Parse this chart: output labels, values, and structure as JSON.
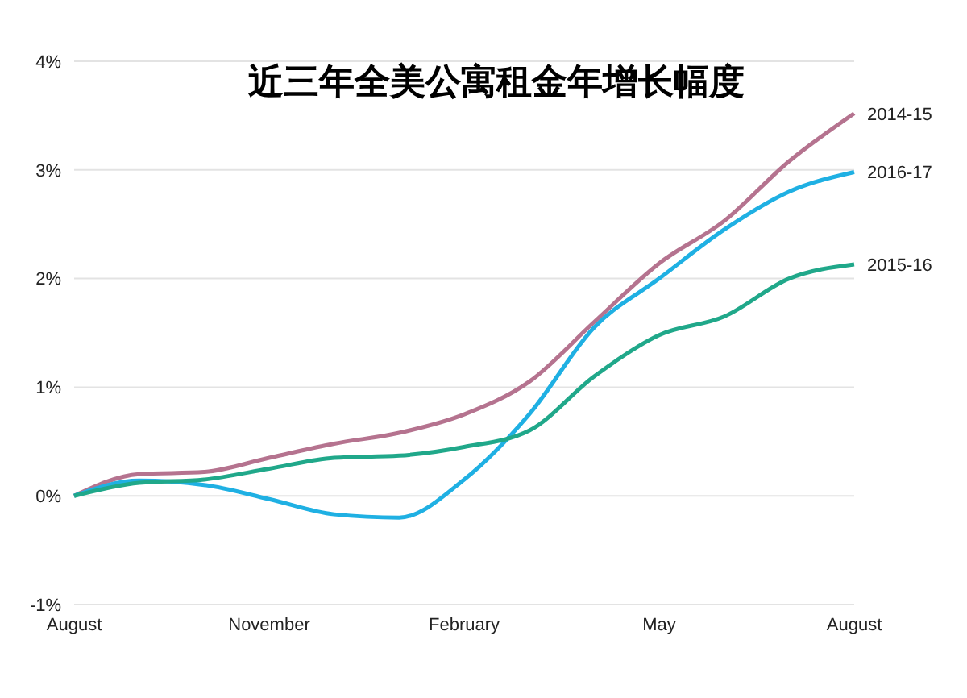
{
  "chart_data": {
    "type": "line",
    "title": "近三年全美公寓租金年增长幅度",
    "categories": [
      "August",
      null,
      null,
      "November",
      null,
      null,
      "February",
      null,
      null,
      "May",
      null,
      null,
      "August"
    ],
    "series": [
      {
        "name": "2014-15",
        "color": "#b5738f",
        "values": [
          0,
          0.2,
          0.22,
          0.35,
          0.48,
          0.58,
          0.75,
          1.05,
          1.6,
          2.14,
          2.53,
          3.08,
          3.52
        ]
      },
      {
        "name": "2016-17",
        "color": "#1fb0e3",
        "values": [
          0,
          0.14,
          0.1,
          -0.03,
          -0.17,
          -0.2,
          0.15,
          0.75,
          1.55,
          2.0,
          2.45,
          2.8,
          2.98
        ]
      },
      {
        "name": "2015-16",
        "color": "#20a88a",
        "values": [
          0,
          0.12,
          0.15,
          0.25,
          0.35,
          0.37,
          0.45,
          0.6,
          1.1,
          1.48,
          1.65,
          2.0,
          2.13
        ]
      }
    ],
    "ylim": [
      -1,
      4
    ],
    "yticks": [
      {
        "value": -1,
        "label": "-1%"
      },
      {
        "value": 0,
        "label": "0%"
      },
      {
        "value": 1,
        "label": "1%"
      },
      {
        "value": 2,
        "label": "2%"
      },
      {
        "value": 3,
        "label": "3%"
      },
      {
        "value": 4,
        "label": "4%"
      }
    ],
    "grid": "y",
    "legend": false,
    "marker": "none",
    "line_style": "solid"
  }
}
